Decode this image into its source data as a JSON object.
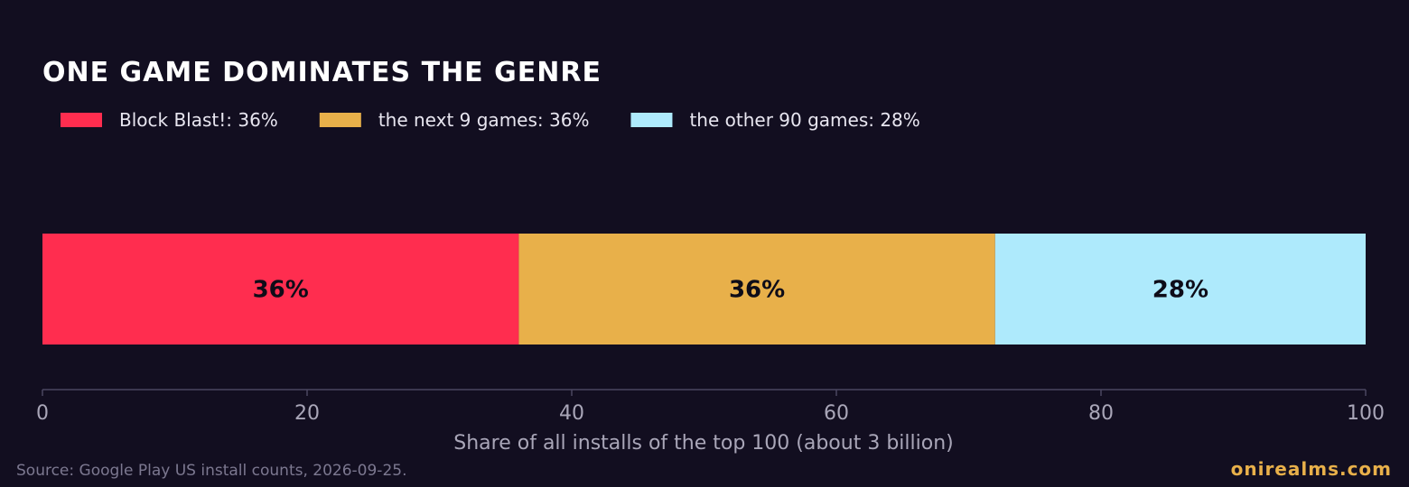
{
  "chart_data": {
    "type": "bar",
    "orientation": "horizontal-stacked",
    "title": "ONE GAME DOMINATES THE GENRE",
    "series": [
      {
        "name": "Block Blast!",
        "value": 36,
        "label": "36%",
        "legend": "Block Blast!: 36%",
        "color": "#ff2d4f"
      },
      {
        "name": "the next 9 games",
        "value": 36,
        "label": "36%",
        "legend": "the next 9 games: 36%",
        "color": "#e8b04a"
      },
      {
        "name": "the other 90 games",
        "value": 28,
        "label": "28%",
        "legend": "the other 90 games: 28%",
        "color": "#aeeafc"
      }
    ],
    "xlabel": "Share of all installs of the top 100 (about 3 billion)",
    "ylabel": "",
    "xlim": [
      0,
      100
    ],
    "xticks": [
      0,
      20,
      40,
      60,
      80,
      100
    ],
    "grid": false,
    "legend_position": "top-left",
    "background_color": "#120e20"
  },
  "footer": {
    "source": "Source: Google Play US install counts, 2026-09-25.",
    "brand": "onirealms.com"
  }
}
